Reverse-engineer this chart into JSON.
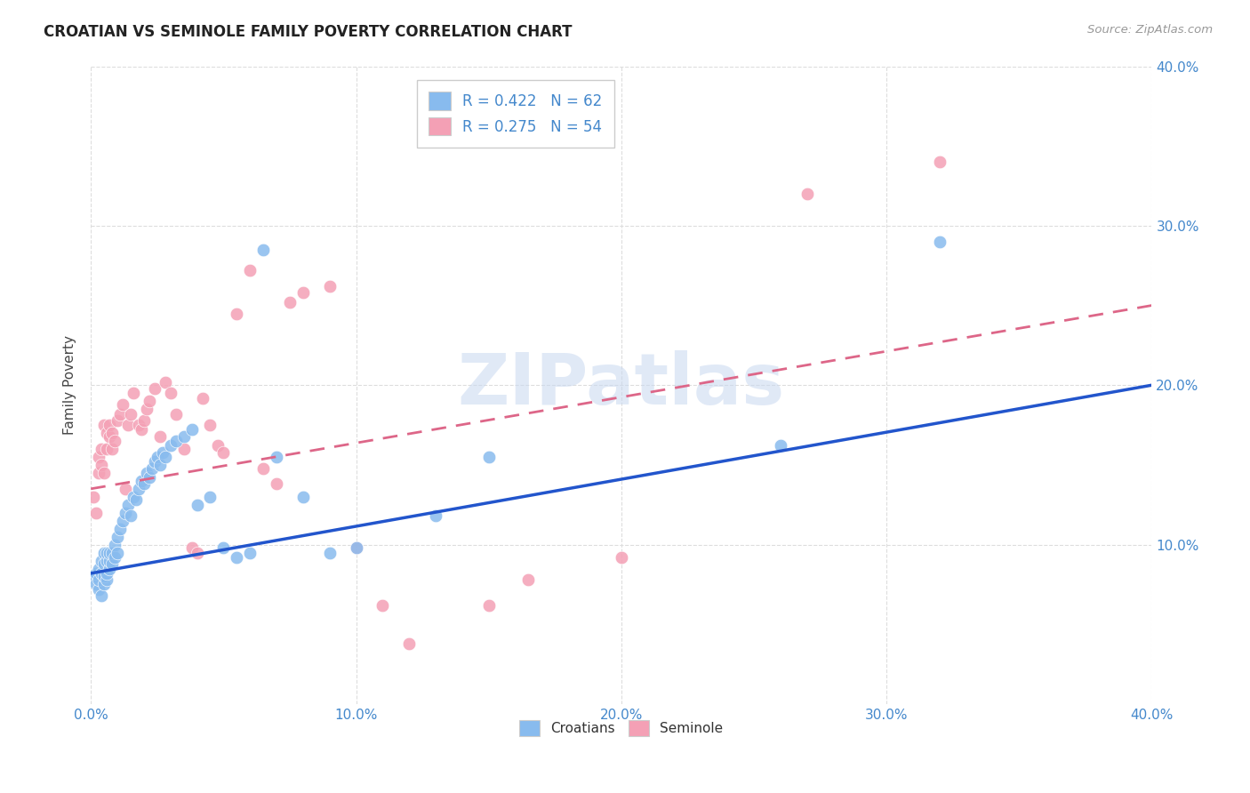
{
  "title": "CROATIAN VS SEMINOLE FAMILY POVERTY CORRELATION CHART",
  "source": "Source: ZipAtlas.com",
  "ylabel": "Family Poverty",
  "xlim": [
    0.0,
    0.4
  ],
  "ylim": [
    0.0,
    0.4
  ],
  "xtick_labels": [
    "0.0%",
    "",
    "",
    "",
    "10.0%",
    "",
    "",
    "",
    "",
    "20.0%",
    "",
    "",
    "",
    "",
    "30.0%",
    "",
    "",
    "",
    "",
    "40.0%"
  ],
  "xtick_show": [
    0.0,
    0.1,
    0.2,
    0.3,
    0.4
  ],
  "xtick_show_labels": [
    "0.0%",
    "10.0%",
    "20.0%",
    "30.0%",
    "40.0%"
  ],
  "ytick_vals": [
    0.1,
    0.2,
    0.3,
    0.4
  ],
  "ytick_labels": [
    "10.0%",
    "20.0%",
    "30.0%",
    "40.0%"
  ],
  "croatian_color": "#88bbee",
  "seminole_color": "#f4a0b5",
  "trendline_croatian_color": "#2255cc",
  "trendline_seminole_color": "#dd6688",
  "legend_line1": "R = 0.422   N = 62",
  "legend_line2": "R = 0.275   N = 54",
  "watermark": "ZIPatlas",
  "watermark_color": "#c8d8f0",
  "background_color": "#ffffff",
  "grid_color": "#dddddd",
  "title_color": "#222222",
  "axis_label_color": "#444444",
  "tick_color": "#4488cc",
  "croatian_x": [
    0.001,
    0.002,
    0.002,
    0.003,
    0.003,
    0.003,
    0.004,
    0.004,
    0.004,
    0.005,
    0.005,
    0.005,
    0.005,
    0.006,
    0.006,
    0.006,
    0.006,
    0.007,
    0.007,
    0.007,
    0.008,
    0.008,
    0.009,
    0.009,
    0.01,
    0.01,
    0.011,
    0.012,
    0.013,
    0.014,
    0.015,
    0.016,
    0.017,
    0.018,
    0.019,
    0.02,
    0.021,
    0.022,
    0.023,
    0.024,
    0.025,
    0.026,
    0.027,
    0.028,
    0.03,
    0.032,
    0.035,
    0.038,
    0.04,
    0.045,
    0.05,
    0.055,
    0.06,
    0.065,
    0.07,
    0.08,
    0.09,
    0.1,
    0.13,
    0.15,
    0.26,
    0.32
  ],
  "croatian_y": [
    0.08,
    0.075,
    0.082,
    0.072,
    0.078,
    0.085,
    0.068,
    0.082,
    0.09,
    0.075,
    0.08,
    0.088,
    0.095,
    0.078,
    0.082,
    0.09,
    0.095,
    0.085,
    0.09,
    0.095,
    0.088,
    0.095,
    0.092,
    0.1,
    0.095,
    0.105,
    0.11,
    0.115,
    0.12,
    0.125,
    0.118,
    0.13,
    0.128,
    0.135,
    0.14,
    0.138,
    0.145,
    0.142,
    0.148,
    0.152,
    0.155,
    0.15,
    0.158,
    0.155,
    0.162,
    0.165,
    0.168,
    0.172,
    0.125,
    0.13,
    0.098,
    0.092,
    0.095,
    0.285,
    0.155,
    0.13,
    0.095,
    0.098,
    0.118,
    0.155,
    0.162,
    0.29
  ],
  "seminole_x": [
    0.001,
    0.002,
    0.003,
    0.003,
    0.004,
    0.004,
    0.005,
    0.005,
    0.006,
    0.006,
    0.007,
    0.007,
    0.008,
    0.008,
    0.009,
    0.01,
    0.011,
    0.012,
    0.013,
    0.014,
    0.015,
    0.016,
    0.018,
    0.019,
    0.02,
    0.021,
    0.022,
    0.024,
    0.026,
    0.028,
    0.03,
    0.032,
    0.035,
    0.038,
    0.04,
    0.042,
    0.045,
    0.048,
    0.05,
    0.055,
    0.06,
    0.065,
    0.07,
    0.075,
    0.08,
    0.09,
    0.1,
    0.11,
    0.12,
    0.15,
    0.165,
    0.2,
    0.27,
    0.32
  ],
  "seminole_y": [
    0.13,
    0.12,
    0.145,
    0.155,
    0.15,
    0.16,
    0.145,
    0.175,
    0.16,
    0.17,
    0.168,
    0.175,
    0.16,
    0.17,
    0.165,
    0.178,
    0.182,
    0.188,
    0.135,
    0.175,
    0.182,
    0.195,
    0.175,
    0.172,
    0.178,
    0.185,
    0.19,
    0.198,
    0.168,
    0.202,
    0.195,
    0.182,
    0.16,
    0.098,
    0.095,
    0.192,
    0.175,
    0.162,
    0.158,
    0.245,
    0.272,
    0.148,
    0.138,
    0.252,
    0.258,
    0.262,
    0.098,
    0.062,
    0.038,
    0.062,
    0.078,
    0.092,
    0.32,
    0.34
  ],
  "trendline_croatian_x0": 0.0,
  "trendline_croatian_x1": 0.4,
  "trendline_croatian_y0": 0.082,
  "trendline_croatian_y1": 0.2,
  "trendline_seminole_x0": 0.0,
  "trendline_seminole_x1": 0.4,
  "trendline_seminole_y0": 0.135,
  "trendline_seminole_y1": 0.25
}
